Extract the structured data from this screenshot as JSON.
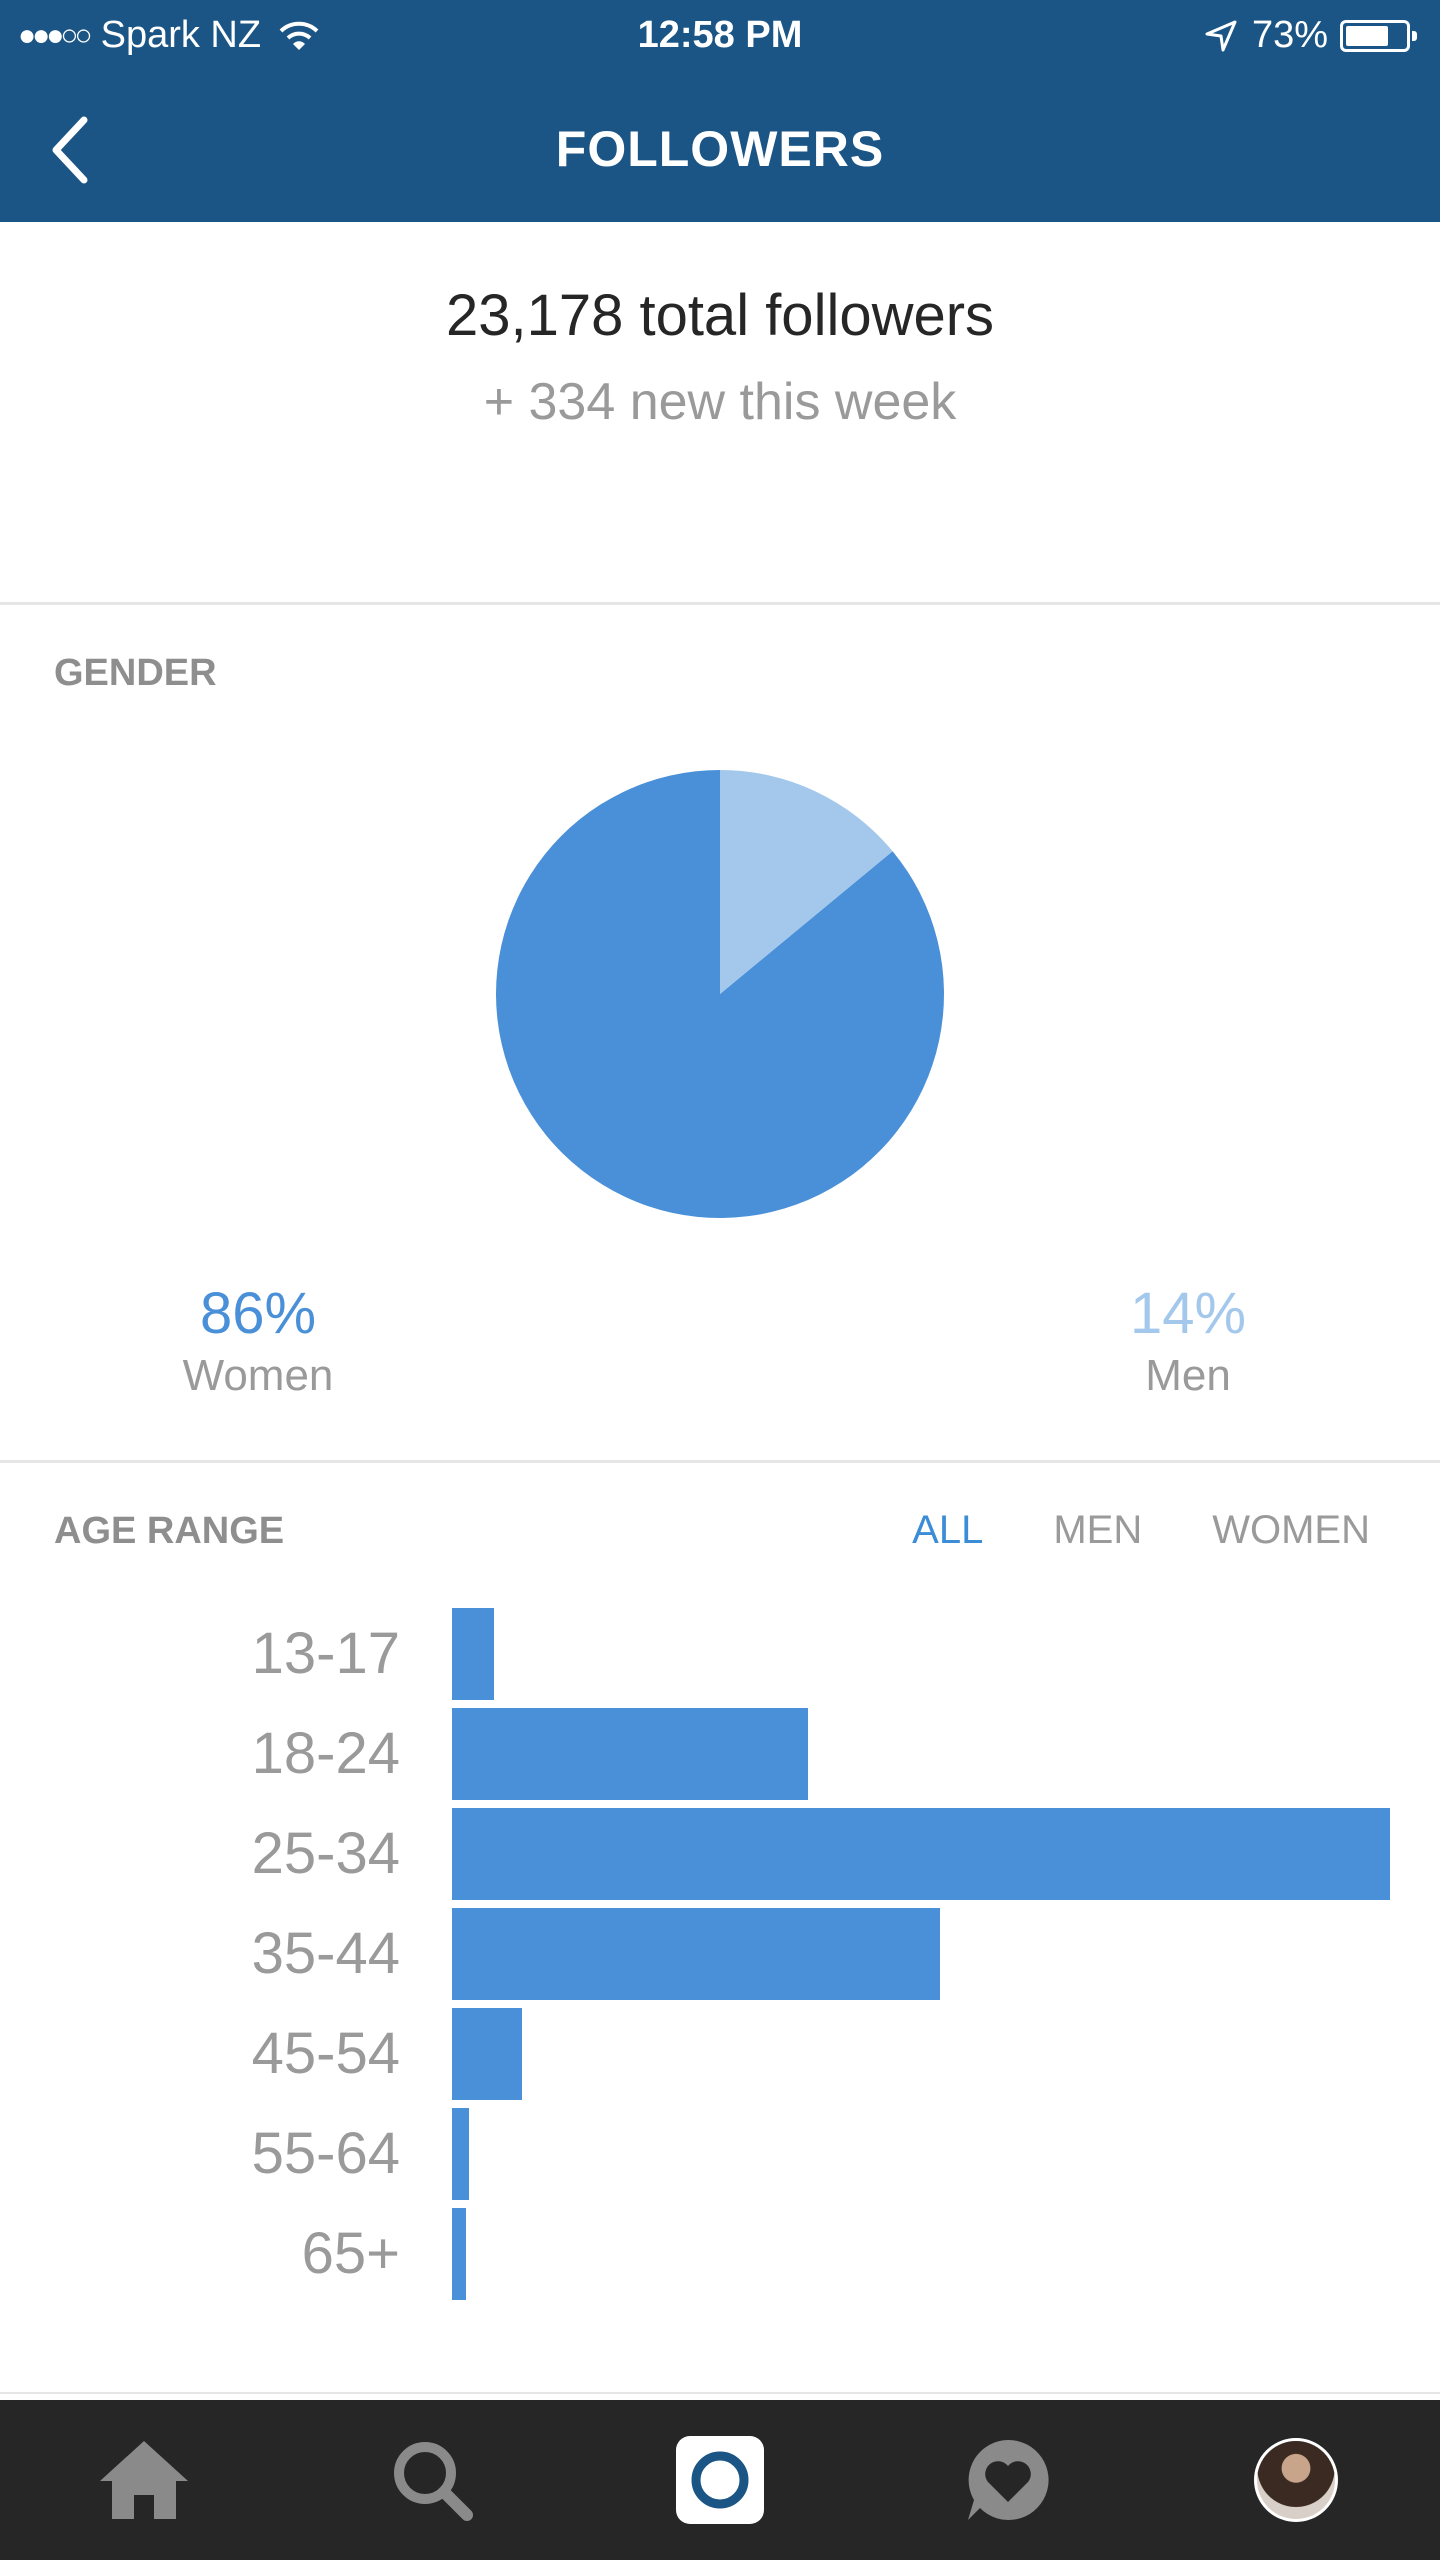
{
  "status_bar": {
    "carrier": "Spark NZ",
    "time": "12:58 PM",
    "battery": "73%",
    "battery_level": 0.73
  },
  "nav": {
    "title": "FOLLOWERS",
    "back_icon": "chevron-left-icon"
  },
  "summary": {
    "total": "23,178 total followers",
    "new_this_week": "+ 334 new this week"
  },
  "gender": {
    "heading": "GENDER",
    "women_pct": "86%",
    "women_label": "Women",
    "men_pct": "14%",
    "men_label": "Men",
    "colors": {
      "women": "#4a90d9",
      "men": "#a3c8ec"
    }
  },
  "age_range": {
    "heading": "AGE RANGE",
    "tabs": [
      {
        "label": "ALL",
        "active": true
      },
      {
        "label": "MEN",
        "active": false
      },
      {
        "label": "WOMEN",
        "active": false
      }
    ]
  },
  "chart_data": [
    {
      "type": "pie",
      "categories": [
        "Women",
        "Men"
      ],
      "values": [
        86,
        14
      ],
      "colors": [
        "#4a90d9",
        "#a3c8ec"
      ]
    },
    {
      "type": "bar",
      "orientation": "horizontal",
      "categories": [
        "13-17",
        "18-24",
        "25-34",
        "35-44",
        "45-54",
        "55-64",
        "65+"
      ],
      "values": [
        4.5,
        38,
        100,
        52,
        7.5,
        1.8,
        1.5
      ],
      "color": "#4a90d9"
    }
  ],
  "tabbar": {
    "items": [
      {
        "name": "home",
        "icon": "home-icon",
        "active": false
      },
      {
        "name": "search",
        "icon": "search-icon",
        "active": false
      },
      {
        "name": "camera",
        "icon": "camera-icon",
        "active": true
      },
      {
        "name": "activity",
        "icon": "heart-bubble-icon",
        "active": false
      },
      {
        "name": "profile",
        "icon": "avatar",
        "active": false
      }
    ]
  }
}
